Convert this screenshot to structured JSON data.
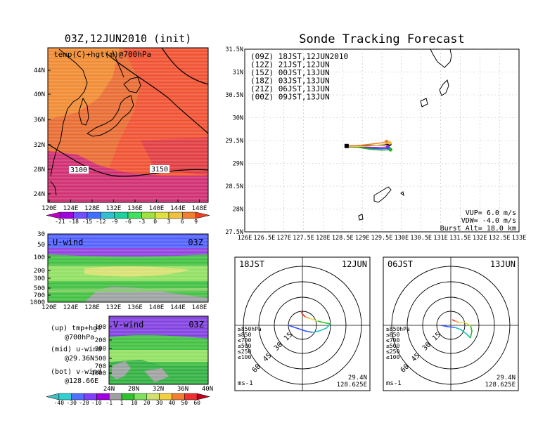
{
  "left_map": {
    "title": "03Z,12JUN2010 (init)",
    "subtitle": "temp(C)+hgt(m)@700hPa",
    "lat_ticks": [
      "44N",
      "40N",
      "36N",
      "32N",
      "28N",
      "24N"
    ],
    "lon_ticks": [
      "120E",
      "124E",
      "128E",
      "132E",
      "136E",
      "140E",
      "144E",
      "148E"
    ],
    "contour_labels": [
      "3100",
      "3150"
    ],
    "colorbar_labels": [
      "-21",
      "-18",
      "-15",
      "-12",
      "-9",
      "-6",
      "-3",
      "0",
      "3",
      "6",
      "9"
    ],
    "colorbar_colors": [
      "#c000c0",
      "#a000e0",
      "#7050ff",
      "#4070ff",
      "#30c0d0",
      "#20d0a0",
      "#40e060",
      "#a0e040",
      "#e0e040",
      "#f0c040",
      "#f08030",
      "#f04020"
    ]
  },
  "u_panel": {
    "label": "U-wind",
    "time": "03Z",
    "y_ticks": [
      "30",
      "50",
      "100",
      "200",
      "300",
      "500",
      "700",
      "1000"
    ],
    "x_ticks": [
      "120E",
      "124E",
      "128E",
      "132E",
      "136E",
      "140E",
      "144E",
      "148E"
    ]
  },
  "v_panel": {
    "label": "V-wind",
    "time": "03Z",
    "y_ticks": [
      "100",
      "200",
      "300",
      "500",
      "700",
      "1000"
    ],
    "x_ticks": [
      "24N",
      "28N",
      "32N",
      "36N",
      "40N"
    ]
  },
  "legend_text": [
    {
      "line1": "(up) tmp+hgt",
      "line2": "@700hPa"
    },
    {
      "line1": "(mid) u-wind",
      "line2": "@29.36N"
    },
    {
      "line1": "(bot) v-wind",
      "line2": "@128.66E"
    }
  ],
  "wind_colorbar": {
    "labels": [
      "-40",
      "-30",
      "-20",
      "-10",
      "-1",
      "1",
      "10",
      "20",
      "30",
      "40",
      "50",
      "60"
    ],
    "colors": [
      "#40c0c0",
      "#30d0d0",
      "#5070ff",
      "#8040ff",
      "#a000e0",
      "#a0a0a0",
      "#30c030",
      "#80e060",
      "#d0e070",
      "#f0d040",
      "#f08030",
      "#f03030",
      "#c00020"
    ]
  },
  "track_panel": {
    "title": "Sonde Tracking Forecast",
    "lat_ticks": [
      "31.5N",
      "31N",
      "30.5N",
      "30N",
      "29.5N",
      "29N",
      "28.5N",
      "28N",
      "27.5N"
    ],
    "lon_ticks": [
      "126E",
      "126.5E",
      "127E",
      "127.5E",
      "128E",
      "128.5E",
      "129E",
      "129.5E",
      "130E",
      "130.5E",
      "131E",
      "131.5E",
      "132E",
      "132.5E",
      "133E"
    ],
    "legend": [
      {
        "text": "(09Z) 18JST,12JUN2010",
        "color": "#000000"
      },
      {
        "text": "(12Z) 21JST,12JUN",
        "color": "#b020c0"
      },
      {
        "text": "(15Z) 00JST,13JUN",
        "color": "#3050ff"
      },
      {
        "text": "(18Z) 03JST,13JUN",
        "color": "#20b020"
      },
      {
        "text": "(21Z) 06JST,13JUN",
        "color": "#f0c040"
      },
      {
        "text": "(00Z) 09JST,13JUN",
        "color": "#f08030"
      }
    ],
    "params": [
      "VUP= 6.0 m/s",
      "VDW= -4.0 m/s",
      "Burst Alt= 18.0 km"
    ]
  },
  "hodograph_left": {
    "time": "18JST",
    "date": "12JUN",
    "ring_labels": [
      "15",
      "30",
      "45",
      "60"
    ],
    "levels": [
      {
        "text": "≥850hPa",
        "color": "#f03020"
      },
      {
        "text": "≤850",
        "color": "#f0a040"
      },
      {
        "text": "≤700",
        "color": "#e0e040"
      },
      {
        "text": "≤500",
        "color": "#20c020"
      },
      {
        "text": "≤250",
        "color": "#20c0c0"
      },
      {
        "text": "≤100",
        "color": "#3050ff"
      }
    ],
    "units": "ms-1",
    "lat": "29.4N",
    "lon": "128.625E"
  },
  "hodograph_right": {
    "time": "06JST",
    "date": "13JUN",
    "ring_labels": [
      "15",
      "30",
      "45",
      "60"
    ],
    "levels": [
      {
        "text": "≥850hPa",
        "color": "#f03020"
      },
      {
        "text": "≤850",
        "color": "#f0a040"
      },
      {
        "text": "≤700",
        "color": "#e0e040"
      },
      {
        "text": "≤500",
        "color": "#20c020"
      },
      {
        "text": "≤250",
        "color": "#20c0c0"
      },
      {
        "text": "≤100",
        "color": "#3050ff"
      }
    ],
    "units": "ms-1",
    "lat": "29.4N",
    "lon": "128.625E"
  },
  "chart_data": [
    {
      "type": "heatmap",
      "title": "03Z,12JUN2010 (init)",
      "subtitle": "temp(C)+hgt(m)@700hPa",
      "xlim": [
        120,
        150
      ],
      "ylim": [
        22,
        48
      ],
      "contours": [
        {
          "label": "3100"
        },
        {
          "label": "3150"
        }
      ]
    },
    {
      "type": "line",
      "title": "Sonde Tracking Forecast",
      "xlim": [
        126,
        133
      ],
      "ylim": [
        27.5,
        31.5
      ],
      "series": [
        {
          "name": "(09Z) 18JST,12JUN2010",
          "color": "#000000",
          "x": [
            128.6,
            128.9,
            129.2,
            129.5,
            129.7
          ],
          "y": [
            29.38,
            29.39,
            29.39,
            29.4,
            29.42
          ]
        },
        {
          "name": "(12Z) 21JST,12JUN",
          "color": "#b020c0",
          "x": [
            128.6,
            128.9,
            129.2,
            129.5,
            129.65
          ],
          "y": [
            29.37,
            29.36,
            29.35,
            29.35,
            29.36
          ]
        },
        {
          "name": "(15Z) 00JST,13JUN",
          "color": "#3050ff",
          "x": [
            128.6,
            128.9,
            129.2,
            129.5,
            129.68
          ],
          "y": [
            29.36,
            29.35,
            29.33,
            29.32,
            29.33
          ]
        },
        {
          "name": "(18Z) 03JST,13JUN",
          "color": "#20b020",
          "x": [
            128.6,
            128.9,
            129.2,
            129.5,
            129.72
          ],
          "y": [
            29.37,
            29.35,
            29.31,
            29.29,
            29.3
          ]
        },
        {
          "name": "(21Z) 06JST,13JUN",
          "color": "#f0c040",
          "x": [
            128.6,
            128.9,
            129.2,
            129.5,
            129.7
          ],
          "y": [
            29.37,
            29.37,
            29.38,
            29.41,
            29.45
          ]
        },
        {
          "name": "(00Z) 09JST,13JUN",
          "color": "#f08030",
          "x": [
            128.6,
            128.9,
            129.2,
            129.5,
            129.62
          ],
          "y": [
            29.38,
            29.39,
            29.42,
            29.45,
            29.48
          ]
        }
      ]
    }
  ]
}
